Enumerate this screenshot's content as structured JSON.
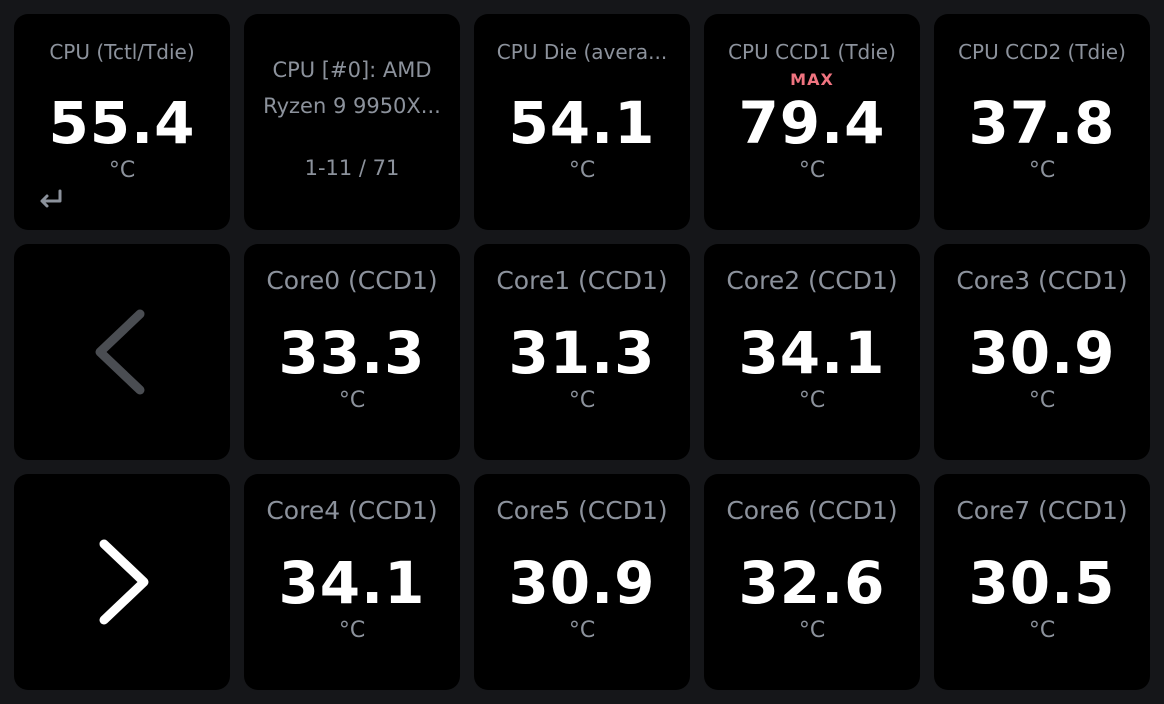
{
  "colors": {
    "background": "#151619",
    "tile": "#000000",
    "label": "#8c929c",
    "value": "#ffffff",
    "max_badge": "#f07480",
    "chevron_prev": "#4a4d52",
    "chevron_next": "#ffffff"
  },
  "header_tiles": [
    {
      "label": "CPU (Tctl/Tdie)",
      "value": "55.4",
      "unit": "°C",
      "icon": "return-icon"
    },
    {
      "info_line1": "CPU [#0]: AMD",
      "info_line2": "Ryzen 9 9950X...",
      "page": "1-11 / 71"
    },
    {
      "label": "CPU Die (avera...",
      "value": "54.1",
      "unit": "°C"
    },
    {
      "label": "CPU CCD1 (Tdie)",
      "badge": "MAX",
      "value": "79.4",
      "unit": "°C"
    },
    {
      "label": "CPU CCD2 (Tdie)",
      "value": "37.8",
      "unit": "°C"
    }
  ],
  "nav": {
    "prev_icon": "chevron-left-icon",
    "next_icon": "chevron-right-icon"
  },
  "cores": [
    {
      "label": "Core0 (CCD1)",
      "value": "33.3",
      "unit": "°C"
    },
    {
      "label": "Core1 (CCD1)",
      "value": "31.3",
      "unit": "°C"
    },
    {
      "label": "Core2 (CCD1)",
      "value": "34.1",
      "unit": "°C"
    },
    {
      "label": "Core3 (CCD1)",
      "value": "30.9",
      "unit": "°C"
    },
    {
      "label": "Core4 (CCD1)",
      "value": "34.1",
      "unit": "°C"
    },
    {
      "label": "Core5 (CCD1)",
      "value": "30.9",
      "unit": "°C"
    },
    {
      "label": "Core6 (CCD1)",
      "value": "32.6",
      "unit": "°C"
    },
    {
      "label": "Core7 (CCD1)",
      "value": "30.5",
      "unit": "°C"
    }
  ]
}
